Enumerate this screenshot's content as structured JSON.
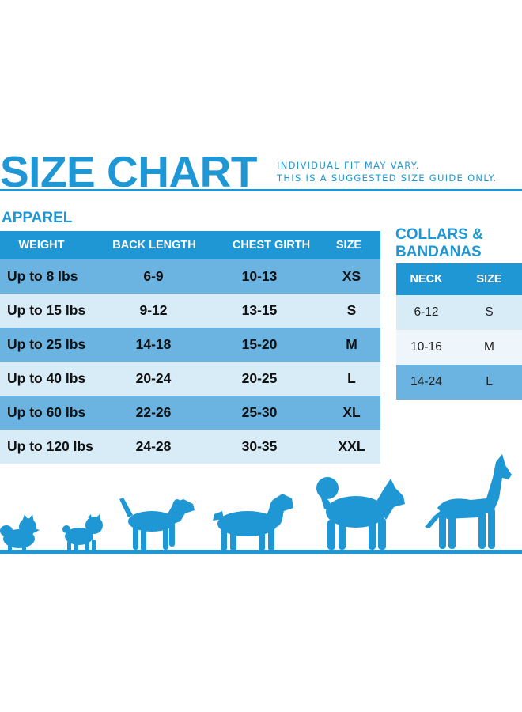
{
  "header": {
    "title": "SIZE CHART",
    "note_line1": "INDIVIDUAL FIT MAY VARY.",
    "note_line2": "THIS IS A SUGGESTED SIZE GUIDE ONLY."
  },
  "apparel": {
    "label": "APPAREL",
    "columns": [
      "WEIGHT",
      "BACK LENGTH",
      "CHEST GIRTH",
      "SIZE"
    ],
    "rows": [
      [
        "Up to 8 lbs",
        "6-9",
        "10-13",
        "XS"
      ],
      [
        "Up to 15 lbs",
        "9-12",
        "13-15",
        "S"
      ],
      [
        "Up to 25 lbs",
        "14-18",
        "15-20",
        "M"
      ],
      [
        "Up to 40 lbs",
        "20-24",
        "20-25",
        "L"
      ],
      [
        "Up to 60 lbs",
        "22-26",
        "25-30",
        "XL"
      ],
      [
        "Up to 120 lbs",
        "24-28",
        "30-35",
        "XXL"
      ]
    ]
  },
  "collars": {
    "label_line1": "COLLARS &",
    "label_line2": "BANDANAS",
    "columns": [
      "NECK",
      "SIZE"
    ],
    "rows": [
      [
        "6-12",
        "S"
      ],
      [
        "10-16",
        "M"
      ],
      [
        "14-24",
        "L"
      ]
    ]
  },
  "dogs": [
    "pomeranian-icon",
    "pug-icon",
    "beagle-icon",
    "spaniel-icon",
    "husky-icon",
    "great-dane-icon"
  ],
  "colors": {
    "accent": "#1f97d5",
    "row_dark": "#6bb4e2",
    "row_light": "#d8ecf8"
  }
}
